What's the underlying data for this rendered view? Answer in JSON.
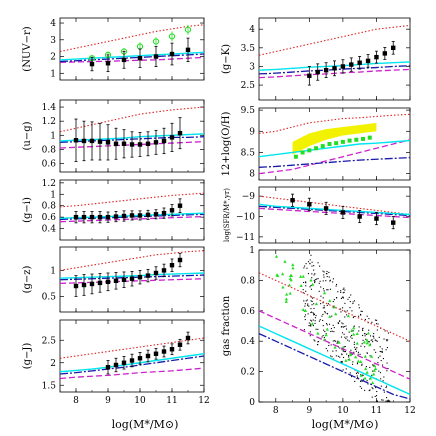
{
  "figure": {
    "left_xlabel": "log(M*/M⊙)",
    "right_xlabel": "log(M*/M⊙)"
  },
  "colors": {
    "data_markers": "#000000",
    "green_data": "#22dd22",
    "cyan_model": "#00e5ee",
    "blue_model": "#1a1aaa",
    "magenta_model": "#cc22cc",
    "red_model": "#dd2222",
    "yellow_band": "#f2f200"
  },
  "chart_data": [
    {
      "id": "nuv-r",
      "type": "scatter",
      "ylabel": "(NUV−r)",
      "xlim": [
        7.5,
        12
      ],
      "ylim": [
        0.6,
        4.3
      ],
      "xticks": [
        8,
        9,
        10,
        11,
        12
      ],
      "yticks": [
        1,
        2,
        3,
        4
      ],
      "xticklabels": [
        "",
        "",
        "",
        "",
        ""
      ],
      "yticklabels": [
        "1",
        "2",
        "3",
        "4"
      ],
      "points": {
        "x": [
          8.5,
          9.0,
          9.5,
          10.0,
          10.5,
          11.0,
          11.5
        ],
        "y": [
          1.55,
          1.6,
          1.8,
          1.9,
          2.0,
          2.15,
          2.4
        ],
        "err": [
          0.4,
          0.5,
          0.5,
          0.55,
          0.6,
          0.65,
          0.7
        ]
      },
      "green_points": {
        "x": [
          8.5,
          9.0,
          9.5,
          10.0,
          10.5,
          11.0,
          11.5
        ],
        "y": [
          1.9,
          2.1,
          2.3,
          2.6,
          2.9,
          3.2,
          3.6
        ],
        "err": [
          0.2,
          0.2,
          0.2,
          0.25,
          0.25,
          0.3,
          0.3
        ]
      },
      "models": {
        "x": [
          7.5,
          8,
          8.5,
          9,
          9.5,
          10,
          10.5,
          11,
          11.5,
          12
        ],
        "red": [
          2.3,
          2.5,
          2.7,
          2.9,
          3.1,
          3.3,
          3.5,
          3.65,
          3.8,
          3.9
        ],
        "cyan": [
          1.8,
          1.85,
          1.9,
          1.95,
          2.0,
          2.05,
          2.1,
          2.15,
          2.2,
          2.25
        ],
        "blue": [
          1.7,
          1.75,
          1.8,
          1.85,
          1.9,
          1.95,
          2.0,
          2.05,
          2.1,
          2.15
        ],
        "magenta": [
          1.65,
          1.68,
          1.7,
          1.72,
          1.75,
          1.78,
          1.8,
          1.85,
          1.9,
          1.95
        ]
      }
    },
    {
      "id": "u-g",
      "type": "scatter",
      "ylabel": "(u−g)",
      "xlim": [
        7.5,
        12
      ],
      "ylim": [
        0.48,
        1.5
      ],
      "xticks": [
        8,
        9,
        10,
        11,
        12
      ],
      "yticks": [
        0.6,
        0.8,
        1.0,
        1.2,
        1.4
      ],
      "xticklabels": [
        "",
        "",
        "",
        "",
        ""
      ],
      "yticklabels": [
        "0.6",
        "0.8",
        "1",
        "1.2",
        "1.4"
      ],
      "points": {
        "x": [
          8.0,
          8.25,
          8.5,
          8.75,
          9.0,
          9.25,
          9.5,
          9.75,
          10.0,
          10.25,
          10.5,
          10.75,
          11.0,
          11.25
        ],
        "y": [
          0.93,
          0.92,
          0.92,
          0.91,
          0.9,
          0.88,
          0.88,
          0.87,
          0.87,
          0.88,
          0.9,
          0.92,
          0.97,
          1.03
        ],
        "err": [
          0.3,
          0.28,
          0.27,
          0.26,
          0.25,
          0.22,
          0.2,
          0.18,
          0.17,
          0.17,
          0.17,
          0.18,
          0.2,
          0.22
        ]
      },
      "models": {
        "x": [
          7.5,
          8,
          8.5,
          9,
          9.5,
          10,
          10.5,
          11,
          11.5,
          12
        ],
        "red": [
          1.05,
          1.1,
          1.15,
          1.2,
          1.25,
          1.3,
          1.33,
          1.36,
          1.38,
          1.4
        ],
        "cyan": [
          0.92,
          0.93,
          0.94,
          0.95,
          0.96,
          0.98,
          0.99,
          1.0,
          1.01,
          1.02
        ],
        "blue": [
          0.9,
          0.91,
          0.92,
          0.93,
          0.94,
          0.95,
          0.96,
          0.97,
          0.97,
          0.98
        ],
        "magenta": [
          0.82,
          0.83,
          0.84,
          0.85,
          0.86,
          0.87,
          0.88,
          0.89,
          0.9,
          0.91
        ]
      }
    },
    {
      "id": "g-i",
      "type": "scatter",
      "ylabel": "(g−i)",
      "xlim": [
        7.5,
        12
      ],
      "ylim": [
        0.2,
        1.25
      ],
      "xticks": [
        8,
        9,
        10,
        11,
        12
      ],
      "yticks": [
        0.4,
        0.6,
        0.8,
        1.0,
        1.2
      ],
      "xticklabels": [
        "",
        "",
        "",
        "",
        ""
      ],
      "yticklabels": [
        "0.4",
        "0.6",
        "0.8",
        "1",
        "1.2"
      ],
      "points": {
        "x": [
          8.0,
          8.25,
          8.5,
          8.75,
          9.0,
          9.25,
          9.5,
          9.75,
          10.0,
          10.25,
          10.5,
          10.75,
          11.0,
          11.25
        ],
        "y": [
          0.6,
          0.6,
          0.6,
          0.6,
          0.6,
          0.61,
          0.62,
          0.63,
          0.63,
          0.64,
          0.65,
          0.67,
          0.72,
          0.8
        ],
        "err": [
          0.1,
          0.1,
          0.1,
          0.1,
          0.09,
          0.09,
          0.09,
          0.08,
          0.08,
          0.08,
          0.08,
          0.09,
          0.1,
          0.12
        ]
      },
      "models": {
        "x": [
          7.5,
          8,
          8.5,
          9,
          9.5,
          10,
          10.5,
          11,
          11.5,
          12
        ],
        "red": [
          0.78,
          0.8,
          0.83,
          0.86,
          0.89,
          0.92,
          0.95,
          0.98,
          1.0,
          1.02
        ],
        "cyan": [
          0.58,
          0.59,
          0.6,
          0.61,
          0.62,
          0.63,
          0.64,
          0.65,
          0.66,
          0.67
        ],
        "blue": [
          0.56,
          0.57,
          0.58,
          0.59,
          0.6,
          0.61,
          0.62,
          0.63,
          0.64,
          0.65
        ],
        "magenta": [
          0.52,
          0.53,
          0.54,
          0.55,
          0.56,
          0.57,
          0.58,
          0.59,
          0.6,
          0.61
        ]
      }
    },
    {
      "id": "g-z",
      "type": "scatter",
      "ylabel": "(g−z)",
      "xlim": [
        7.5,
        12
      ],
      "ylim": [
        0.2,
        1.45
      ],
      "xticks": [
        8,
        9,
        10,
        11,
        12
      ],
      "yticks": [
        0.5,
        1.0
      ],
      "xticklabels": [
        "",
        "",
        "",
        "",
        ""
      ],
      "yticklabels": [
        "0.5",
        "1"
      ],
      "points": {
        "x": [
          8.0,
          8.25,
          8.5,
          8.75,
          9.0,
          9.25,
          9.5,
          9.75,
          10.0,
          10.25,
          10.5,
          10.75,
          11.0,
          11.25
        ],
        "y": [
          0.7,
          0.72,
          0.74,
          0.76,
          0.78,
          0.8,
          0.82,
          0.84,
          0.87,
          0.9,
          0.95,
          1.0,
          1.1,
          1.2
        ],
        "err": [
          0.2,
          0.2,
          0.19,
          0.18,
          0.17,
          0.16,
          0.15,
          0.14,
          0.13,
          0.12,
          0.12,
          0.12,
          0.12,
          0.13
        ]
      },
      "models": {
        "x": [
          7.5,
          8,
          8.5,
          9,
          9.5,
          10,
          10.5,
          11,
          11.5,
          12
        ],
        "red": [
          1.0,
          1.05,
          1.1,
          1.15,
          1.2,
          1.25,
          1.3,
          1.33,
          1.36,
          1.38
        ],
        "cyan": [
          0.85,
          0.86,
          0.87,
          0.88,
          0.89,
          0.9,
          0.92,
          0.93,
          0.94,
          0.95
        ],
        "blue": [
          0.82,
          0.83,
          0.84,
          0.85,
          0.86,
          0.87,
          0.88,
          0.89,
          0.9,
          0.91
        ],
        "magenta": [
          0.75,
          0.76,
          0.77,
          0.78,
          0.79,
          0.8,
          0.81,
          0.82,
          0.83,
          0.84
        ]
      }
    },
    {
      "id": "g-J",
      "type": "scatter",
      "ylabel": "(g−J)",
      "xlim": [
        7.5,
        12
      ],
      "ylim": [
        1.35,
        2.95
      ],
      "xticks": [
        8,
        9,
        10,
        11,
        12
      ],
      "yticks": [
        1.5,
        2.0,
        2.5
      ],
      "xticklabels": [
        "8",
        "9",
        "10",
        "11",
        "12"
      ],
      "yticklabels": [
        "1.5",
        "2",
        "2.5"
      ],
      "points": {
        "x": [
          9.0,
          9.25,
          9.5,
          9.75,
          10.0,
          10.25,
          10.5,
          10.75,
          11.0,
          11.25,
          11.5
        ],
        "y": [
          1.9,
          1.95,
          2.0,
          2.05,
          2.1,
          2.15,
          2.2,
          2.25,
          2.3,
          2.4,
          2.55
        ],
        "err": [
          0.15,
          0.15,
          0.14,
          0.14,
          0.13,
          0.13,
          0.12,
          0.12,
          0.12,
          0.12,
          0.13
        ]
      },
      "models": {
        "x": [
          7.5,
          8,
          8.5,
          9,
          9.5,
          10,
          10.5,
          11,
          11.5,
          12
        ],
        "red": [
          2.1,
          2.15,
          2.2,
          2.25,
          2.3,
          2.35,
          2.4,
          2.45,
          2.5,
          2.55
        ],
        "cyan": [
          1.8,
          1.83,
          1.86,
          1.9,
          1.95,
          2.0,
          2.05,
          2.1,
          2.15,
          2.2
        ],
        "blue": [
          1.75,
          1.78,
          1.82,
          1.86,
          1.9,
          1.95,
          2.0,
          2.05,
          2.1,
          2.15
        ],
        "magenta": [
          1.65,
          1.68,
          1.7,
          1.72,
          1.75,
          1.78,
          1.8,
          1.82,
          1.85,
          1.88
        ]
      }
    },
    {
      "id": "g-K",
      "type": "scatter",
      "ylabel": "(g−K)",
      "xlim": [
        7.5,
        12
      ],
      "ylim": [
        2.1,
        4.3
      ],
      "xticks": [
        8,
        9,
        10,
        11,
        12
      ],
      "yticks": [
        2.5,
        3.0,
        3.5,
        4.0
      ],
      "xticklabels": [
        "",
        "",
        "",
        "",
        ""
      ],
      "yticklabels": [
        "2.5",
        "3",
        "3.5",
        "4"
      ],
      "points": {
        "x": [
          9.0,
          9.25,
          9.5,
          9.75,
          10.0,
          10.25,
          10.5,
          10.75,
          11.0,
          11.25,
          11.5
        ],
        "y": [
          2.75,
          2.85,
          2.9,
          2.95,
          3.0,
          3.05,
          3.1,
          3.15,
          3.25,
          3.35,
          3.5
        ],
        "err": [
          0.25,
          0.22,
          0.2,
          0.2,
          0.18,
          0.18,
          0.17,
          0.17,
          0.16,
          0.16,
          0.17
        ]
      },
      "models": {
        "x": [
          7.5,
          8,
          8.5,
          9,
          9.5,
          10,
          10.5,
          11,
          11.5,
          12
        ],
        "red": [
          3.3,
          3.4,
          3.5,
          3.6,
          3.7,
          3.8,
          3.9,
          4.0,
          4.05,
          4.1
        ],
        "cyan": [
          2.9,
          2.92,
          2.95,
          2.98,
          3.0,
          3.02,
          3.05,
          3.08,
          3.1,
          3.12
        ],
        "blue": [
          2.8,
          2.82,
          2.85,
          2.88,
          2.9,
          2.93,
          2.95,
          2.97,
          3.0,
          3.02
        ],
        "magenta": [
          2.7,
          2.72,
          2.75,
          2.78,
          2.8,
          2.83,
          2.85,
          2.88,
          2.9,
          2.92
        ]
      }
    },
    {
      "id": "oh",
      "type": "scatter",
      "ylabel": "12+log(O/H)",
      "xlim": [
        7.5,
        12
      ],
      "ylim": [
        7.85,
        9.55
      ],
      "xticks": [
        8,
        9,
        10,
        11,
        12
      ],
      "yticks": [
        8.0,
        8.5,
        9.0,
        9.5
      ],
      "xticklabels": [
        "",
        "",
        "",
        "",
        ""
      ],
      "yticklabels": [
        "8",
        "8.5",
        "9",
        "9.5"
      ],
      "yellow_band": {
        "x": [
          8.5,
          9.0,
          9.5,
          10.0,
          10.5,
          11.0
        ],
        "low": [
          8.45,
          8.65,
          8.8,
          8.9,
          8.95,
          9.0
        ],
        "high": [
          8.75,
          8.95,
          9.05,
          9.1,
          9.15,
          9.2
        ]
      },
      "green_points": {
        "x": [
          8.6,
          8.8,
          9.0,
          9.2,
          9.4,
          9.6,
          9.8,
          10.0,
          10.2,
          10.4,
          10.6,
          10.8
        ],
        "y": [
          8.4,
          8.5,
          8.55,
          8.6,
          8.65,
          8.7,
          8.72,
          8.75,
          8.78,
          8.8,
          8.82,
          8.85
        ]
      },
      "models": {
        "x": [
          7.5,
          8,
          8.5,
          9,
          9.5,
          10,
          10.5,
          11,
          11.5,
          12
        ],
        "red": [
          8.95,
          9.0,
          9.1,
          9.2,
          9.25,
          9.3,
          9.32,
          9.35,
          9.38,
          9.4
        ],
        "cyan": [
          8.4,
          8.45,
          8.5,
          8.55,
          8.6,
          8.65,
          8.7,
          8.72,
          8.75,
          8.78
        ],
        "blue": [
          8.15,
          8.17,
          8.2,
          8.23,
          8.26,
          8.29,
          8.32,
          8.34,
          8.36,
          8.38
        ],
        "magenta": [
          8.0,
          8.05,
          8.1,
          8.2,
          8.3,
          8.4,
          8.5,
          8.6,
          8.7,
          8.8
        ]
      }
    },
    {
      "id": "ssfr",
      "type": "scatter",
      "ylabel": "log(SFR/M*,yr)",
      "xlim": [
        7.5,
        12
      ],
      "ylim": [
        -11.3,
        -8.55
      ],
      "xticks": [
        8,
        9,
        10,
        11,
        12
      ],
      "yticks": [
        -11,
        -10,
        -9
      ],
      "xticklabels": [
        "",
        "",
        "",
        "",
        ""
      ],
      "yticklabels": [
        "−11",
        "−10",
        "−9"
      ],
      "points": {
        "x": [
          8.5,
          9.0,
          9.5,
          10.0,
          10.5,
          11.0,
          11.5
        ],
        "y": [
          -9.2,
          -9.4,
          -9.6,
          -9.8,
          -10.0,
          -10.1,
          -10.3
        ],
        "err": [
          0.3,
          0.3,
          0.3,
          0.3,
          0.3,
          0.3,
          0.3
        ]
      },
      "models": {
        "x": [
          7.5,
          8,
          8.5,
          9,
          9.5,
          10,
          10.5,
          11,
          11.5,
          12
        ],
        "red": [
          -9.0,
          -9.1,
          -9.2,
          -9.3,
          -9.4,
          -9.5,
          -9.6,
          -9.7,
          -9.8,
          -9.9
        ],
        "cyan": [
          -9.4,
          -9.5,
          -9.55,
          -9.6,
          -9.65,
          -9.7,
          -9.75,
          -9.8,
          -9.85,
          -9.9
        ],
        "blue": [
          -9.5,
          -9.55,
          -9.6,
          -9.65,
          -9.7,
          -9.75,
          -9.8,
          -9.85,
          -9.9,
          -9.95
        ],
        "magenta": [
          -9.6,
          -9.65,
          -9.7,
          -9.75,
          -9.8,
          -9.85,
          -9.9,
          -9.95,
          -10.0,
          -10.05
        ]
      }
    },
    {
      "id": "gasfrac",
      "type": "scatter",
      "ylabel": "gas fraction",
      "xlim": [
        7.5,
        12
      ],
      "ylim": [
        0,
        1.0
      ],
      "xticks": [
        8,
        9,
        10,
        11,
        12
      ],
      "yticks": [
        0,
        0.2,
        0.4,
        0.6,
        0.8,
        1.0
      ],
      "xticklabels": [
        "8",
        "9",
        "10",
        "11",
        "12"
      ],
      "yticklabels": [
        "0",
        "0.2",
        "0.4",
        "0.6",
        "0.8",
        "1"
      ],
      "models": {
        "x": [
          7.5,
          8,
          8.5,
          9,
          9.5,
          10,
          10.5,
          11,
          11.5,
          12
        ],
        "red": [
          0.85,
          0.8,
          0.75,
          0.7,
          0.65,
          0.6,
          0.55,
          0.5,
          0.45,
          0.4
        ],
        "cyan": [
          0.5,
          0.45,
          0.4,
          0.35,
          0.3,
          0.25,
          0.2,
          0.15,
          0.1,
          0.05
        ],
        "blue": [
          0.45,
          0.4,
          0.35,
          0.3,
          0.25,
          0.2,
          0.15,
          0.1,
          0.05,
          0.02
        ],
        "magenta": [
          0.6,
          0.55,
          0.5,
          0.45,
          0.4,
          0.35,
          0.3,
          0.25,
          0.2,
          0.15
        ]
      }
    }
  ]
}
